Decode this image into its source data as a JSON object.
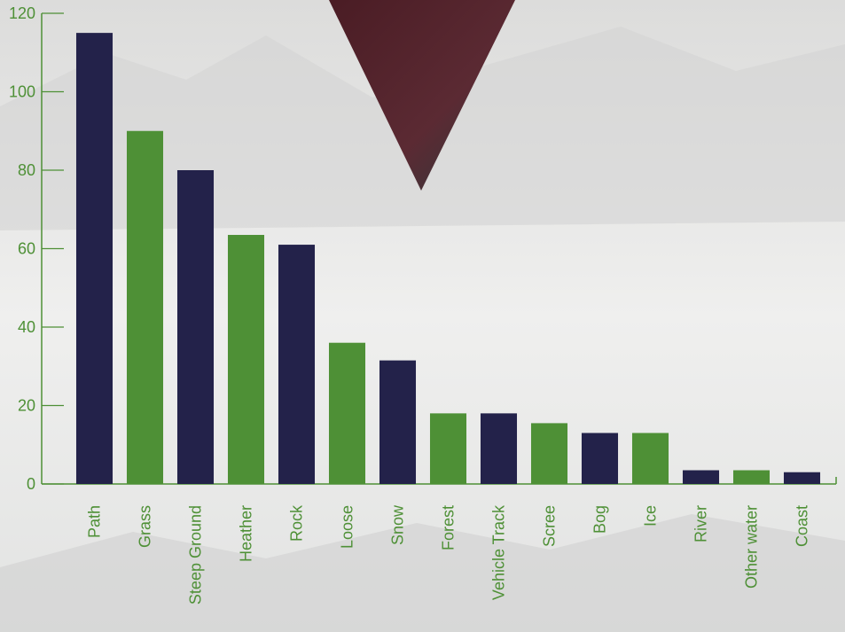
{
  "chart_data": {
    "type": "bar",
    "categories": [
      "Path",
      "Grass",
      "Steep Ground",
      "Heather",
      "Rock",
      "Loose",
      "Snow",
      "Forest",
      "Vehicle Track",
      "Scree",
      "Bog",
      "Ice",
      "River",
      "Other water",
      "Coast"
    ],
    "values": [
      115,
      90,
      80,
      63.5,
      61,
      36,
      31.5,
      18,
      18,
      15.5,
      13,
      13,
      3.5,
      3.5,
      3
    ],
    "colors": [
      "#23224a",
      "#4e9036",
      "#23224a",
      "#4e9036",
      "#23224a",
      "#4e9036",
      "#23224a",
      "#4e9036",
      "#23224a",
      "#4e9036",
      "#23224a",
      "#4e9036",
      "#23224a",
      "#4e9036",
      "#23224a"
    ],
    "axis_color": "#4e9036",
    "ylim": [
      0,
      120
    ],
    "yticks": [
      0,
      20,
      40,
      60,
      80,
      100,
      120
    ],
    "grid": false
  }
}
